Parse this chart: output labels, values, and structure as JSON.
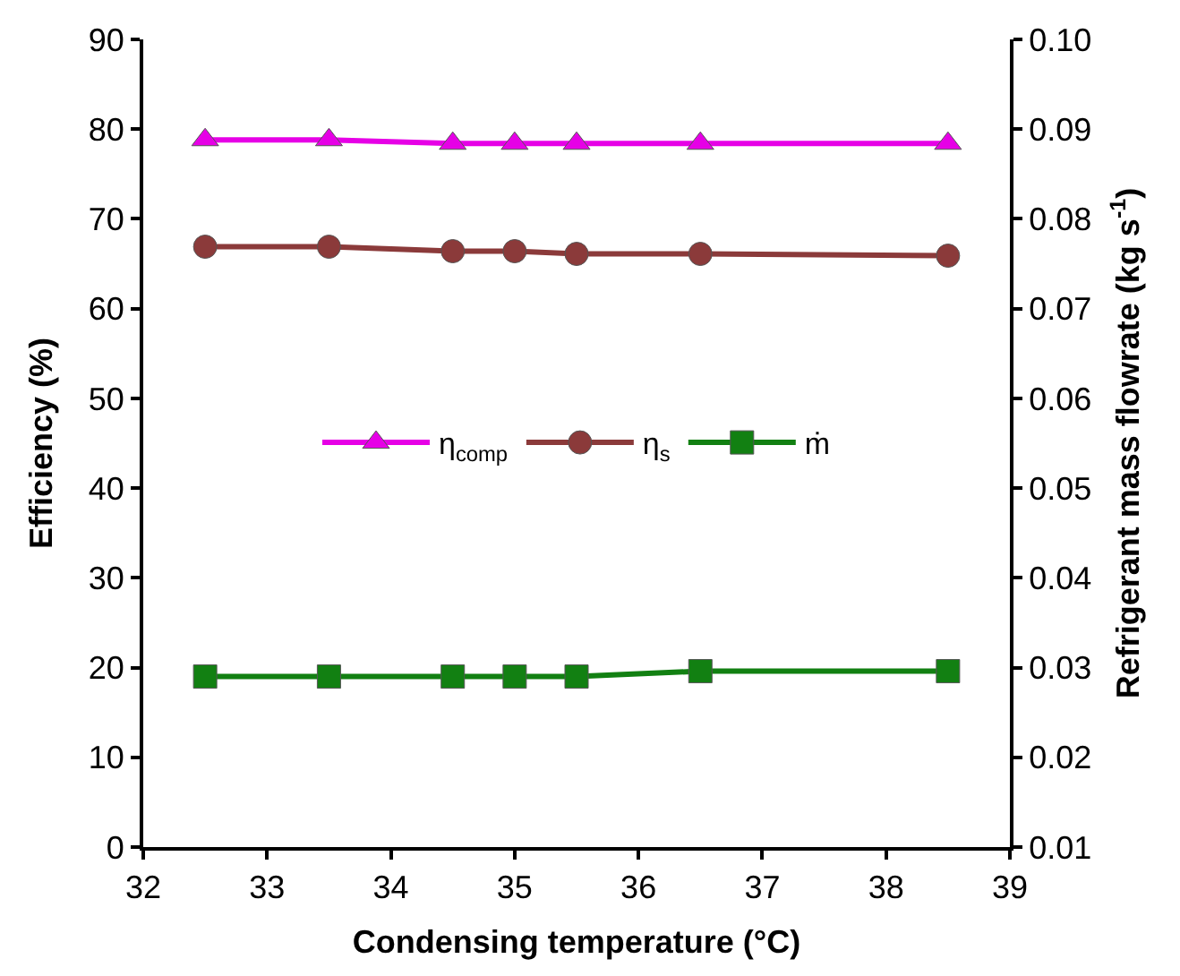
{
  "chart_data": {
    "type": "line",
    "xlabel": "Condensing temperature (°C)",
    "ylabel": "Efficiency (%)",
    "y2label": "Refrigerant mass flowrate (kg s$^{-1}$)",
    "x": [
      32.5,
      33.5,
      34.5,
      35,
      35.5,
      36.5,
      38.5
    ],
    "series": [
      {
        "name": "η$_{comp}$",
        "color": "#e600e6",
        "marker": "triangle",
        "values": [
          78.8,
          78.8,
          78.4,
          78.4,
          78.4,
          78.4,
          78.4
        ]
      },
      {
        "name": "η$_{s}$",
        "color": "#8b3a3a",
        "marker": "circle",
        "values": [
          66.9,
          66.9,
          66.4,
          66.4,
          66.1,
          66.1,
          65.9
        ]
      },
      {
        "name": "ṁ",
        "color": "#128012",
        "marker": "square",
        "axis": "y2",
        "values": [
          0.029,
          0.029,
          0.029,
          0.029,
          0.029,
          0.0296,
          0.0296
        ]
      }
    ],
    "xlim": [
      32,
      39
    ],
    "xticks": [
      32,
      33,
      34,
      35,
      36,
      37,
      38,
      39
    ],
    "ylim": [
      0,
      90
    ],
    "yticks": [
      0,
      10,
      20,
      30,
      40,
      50,
      60,
      70,
      80,
      90
    ],
    "y2lim": [
      0.01,
      0.1
    ],
    "y2ticks": [
      0.01,
      0.02,
      0.03,
      0.04,
      0.05,
      0.06,
      0.07,
      0.08,
      0.09,
      {
        "value": 0.1,
        "label": "0.10"
      }
    ],
    "legend": "center",
    "line_style": "solid"
  }
}
